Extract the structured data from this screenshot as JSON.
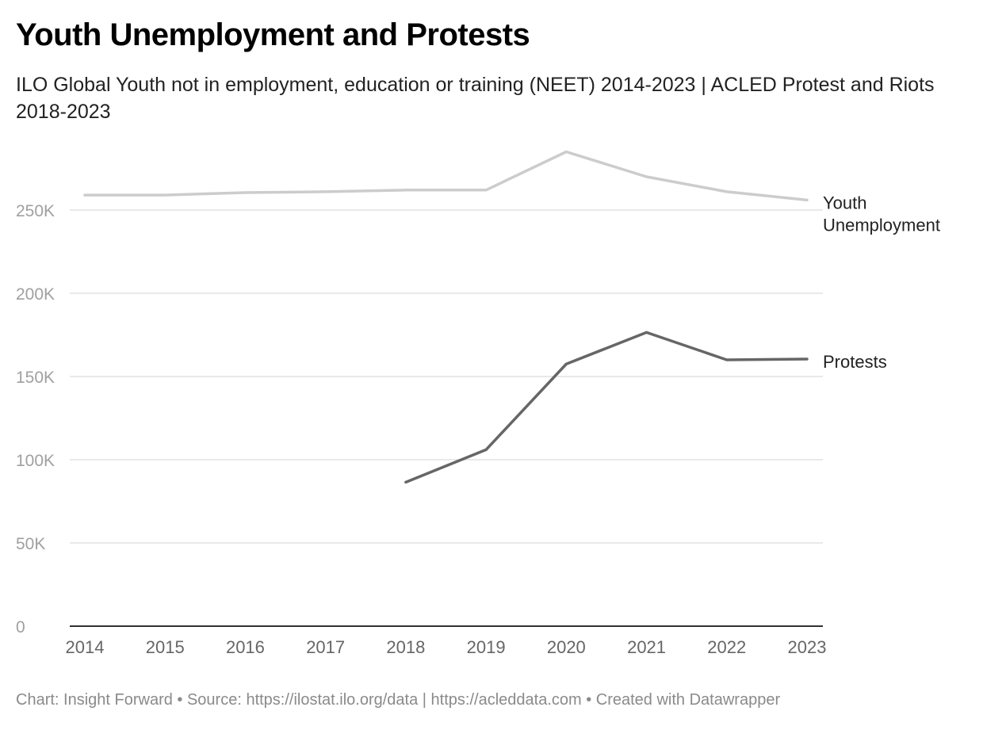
{
  "header": {
    "title": "Youth Unemployment and Protests",
    "subtitle": "ILO Global Youth not in employment, education or training (NEET) 2014-2023 | ACLED Protest and Riots 2018-2023"
  },
  "footer": {
    "text": "Chart: Insight Forward • Source: https://ilostat.ilo.org/data | https://acleddata.com • Created with Datawrapper"
  },
  "colors": {
    "youth_unemployment": "#cccccc",
    "protests": "#666666",
    "gridline": "#e2e2e2",
    "axis_line": "#333333",
    "tick_label": "#a0a0a0",
    "x_tick_label": "#666666"
  },
  "chart_data": {
    "type": "line",
    "x": [
      2014,
      2015,
      2016,
      2017,
      2018,
      2019,
      2020,
      2021,
      2022,
      2023
    ],
    "x_tick_labels": [
      "2014",
      "2015",
      "2016",
      "2017",
      "2018",
      "2019",
      "2020",
      "2021",
      "2022",
      "2023"
    ],
    "ylim": [
      0,
      250000
    ],
    "y_ticks": [
      0,
      50000,
      100000,
      150000,
      200000,
      250000
    ],
    "y_tick_labels": [
      "0",
      "50K",
      "100K",
      "150K",
      "200K",
      "250K"
    ],
    "grid": true,
    "legend": "direct labels at line ends",
    "series": [
      {
        "key": "youth_unemployment",
        "name": "Youth Unemployment",
        "label_lines": [
          "Youth",
          "Unemployment"
        ],
        "x": [
          2014,
          2015,
          2016,
          2017,
          2018,
          2019,
          2020,
          2021,
          2022,
          2023
        ],
        "values": [
          259000,
          259000,
          260500,
          261000,
          262000,
          262000,
          285000,
          270000,
          261000,
          256000
        ]
      },
      {
        "key": "protests",
        "name": "Protests",
        "label_lines": [
          "Protests"
        ],
        "x": [
          2018,
          2019,
          2020,
          2021,
          2022,
          2023
        ],
        "values": [
          86500,
          106000,
          157500,
          176500,
          160000,
          160500
        ]
      }
    ]
  }
}
